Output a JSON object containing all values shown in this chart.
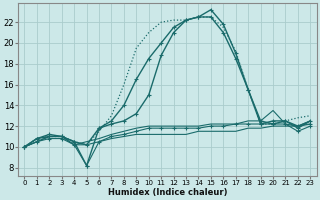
{
  "background_color": "#cce8e8",
  "grid_color": "#aacccc",
  "line_color": "#1a6b6b",
  "xlabel": "Humidex (Indice chaleur)",
  "xlim": [
    -0.5,
    23.5
  ],
  "ylim": [
    7.2,
    23.8
  ],
  "xticks": [
    0,
    1,
    2,
    3,
    4,
    5,
    6,
    7,
    8,
    9,
    10,
    11,
    12,
    13,
    14,
    15,
    16,
    17,
    18,
    19,
    20,
    21,
    22,
    23
  ],
  "yticks": [
    8,
    10,
    12,
    14,
    16,
    18,
    20,
    22
  ],
  "lines": [
    {
      "y": [
        10.0,
        10.8,
        11.2,
        11.0,
        10.5,
        8.2,
        11.8,
        12.5,
        14.0,
        16.5,
        18.5,
        20.0,
        21.5,
        22.2,
        22.5,
        23.2,
        21.8,
        19.0,
        15.5,
        12.5,
        12.2,
        12.5,
        11.8,
        12.5
      ],
      "style": "-",
      "marker": true,
      "lw": 1.0
    },
    {
      "y": [
        10.0,
        10.8,
        11.0,
        11.0,
        10.5,
        10.2,
        11.5,
        13.0,
        16.0,
        19.5,
        21.0,
        22.0,
        22.2,
        22.2,
        22.5,
        22.5,
        21.5,
        19.2,
        15.5,
        12.2,
        12.2,
        12.5,
        12.8,
        13.0
      ],
      "style": ":",
      "marker": false,
      "lw": 0.9
    },
    {
      "y": [
        10.0,
        10.8,
        11.0,
        11.0,
        10.5,
        10.2,
        11.8,
        12.2,
        12.5,
        13.2,
        15.0,
        18.8,
        21.0,
        22.2,
        22.5,
        22.5,
        21.0,
        18.5,
        15.5,
        12.2,
        12.5,
        12.5,
        12.0,
        12.2
      ],
      "style": "-",
      "marker": true,
      "lw": 1.0
    },
    {
      "y": [
        10.0,
        10.5,
        11.0,
        11.0,
        10.2,
        10.2,
        10.5,
        10.8,
        11.0,
        11.2,
        11.2,
        11.2,
        11.2,
        11.2,
        11.5,
        11.5,
        11.5,
        11.5,
        11.8,
        11.8,
        12.0,
        12.0,
        12.0,
        12.5
      ],
      "style": "-",
      "marker": false,
      "lw": 0.8
    },
    {
      "y": [
        10.0,
        10.5,
        11.0,
        11.0,
        10.2,
        10.5,
        10.8,
        11.2,
        11.5,
        11.8,
        12.0,
        12.0,
        12.0,
        12.0,
        12.0,
        12.2,
        12.2,
        12.2,
        12.5,
        12.5,
        13.5,
        12.2,
        12.0,
        12.5
      ],
      "style": "-",
      "marker": false,
      "lw": 0.8
    },
    {
      "y": [
        10.0,
        10.5,
        10.8,
        10.8,
        10.2,
        8.2,
        10.5,
        11.0,
        11.2,
        11.5,
        11.8,
        11.8,
        11.8,
        11.8,
        11.8,
        12.0,
        12.0,
        12.2,
        12.2,
        12.2,
        12.2,
        12.2,
        11.5,
        12.0
      ],
      "style": "-",
      "marker": true,
      "lw": 0.8
    }
  ]
}
